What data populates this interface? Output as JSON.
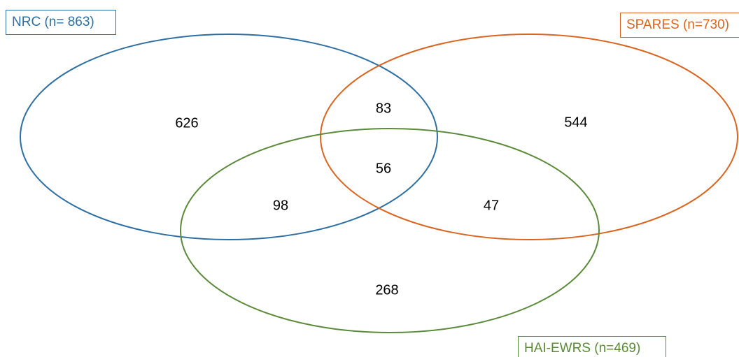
{
  "sets": [
    {
      "key": "nrc",
      "label": "NRC (n= 863)",
      "color": "#2e6fa3"
    },
    {
      "key": "spares",
      "label": "SPARES (n=730)",
      "color": "#d9651f"
    },
    {
      "key": "hai",
      "label": "HAI-EWRS (n=469)",
      "color": "#5b8a3a"
    }
  ],
  "regions": {
    "nrc_only": "626",
    "spares_only": "544",
    "hai_only": "268",
    "nrc_spares": "83",
    "nrc_hai": "98",
    "spares_hai": "47",
    "all_three": "56"
  }
}
